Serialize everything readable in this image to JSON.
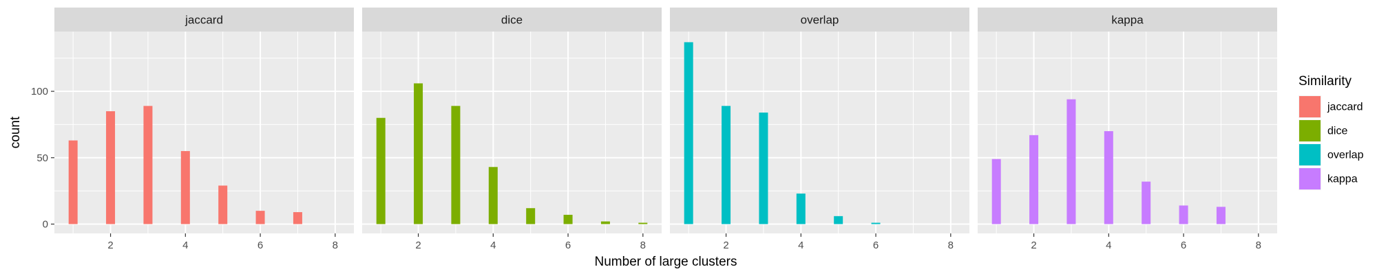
{
  "chart_data": {
    "type": "bar",
    "xlabel": "Number of large clusters",
    "ylabel": "count",
    "xlim": [
      0.5,
      8.5
    ],
    "ylim": [
      -7,
      145
    ],
    "xticks": [
      "2",
      "4",
      "6",
      "8"
    ],
    "yticks": [
      "0",
      "50",
      "100"
    ],
    "grid": true,
    "legend_position": "right",
    "legend": {
      "title": "Similarity",
      "entries": [
        "jaccard",
        "dice",
        "overlap",
        "kappa"
      ]
    },
    "panels": [
      {
        "name": "jaccard",
        "color": "#F8766D",
        "x": [
          1,
          2,
          3,
          4,
          5,
          6,
          7
        ],
        "values": [
          63,
          85,
          89,
          55,
          29,
          10,
          9
        ]
      },
      {
        "name": "dice",
        "color": "#7CAE00",
        "x": [
          1,
          2,
          3,
          4,
          5,
          6,
          7,
          8
        ],
        "values": [
          80,
          106,
          89,
          43,
          12,
          7,
          2,
          1
        ]
      },
      {
        "name": "overlap",
        "color": "#00BFC4",
        "x": [
          1,
          2,
          3,
          4,
          5,
          6
        ],
        "values": [
          137,
          89,
          84,
          23,
          6,
          1
        ]
      },
      {
        "name": "kappa",
        "color": "#C77CFF",
        "x": [
          1,
          2,
          3,
          4,
          5,
          6,
          7
        ],
        "values": [
          49,
          67,
          94,
          70,
          32,
          14,
          13
        ]
      }
    ]
  }
}
